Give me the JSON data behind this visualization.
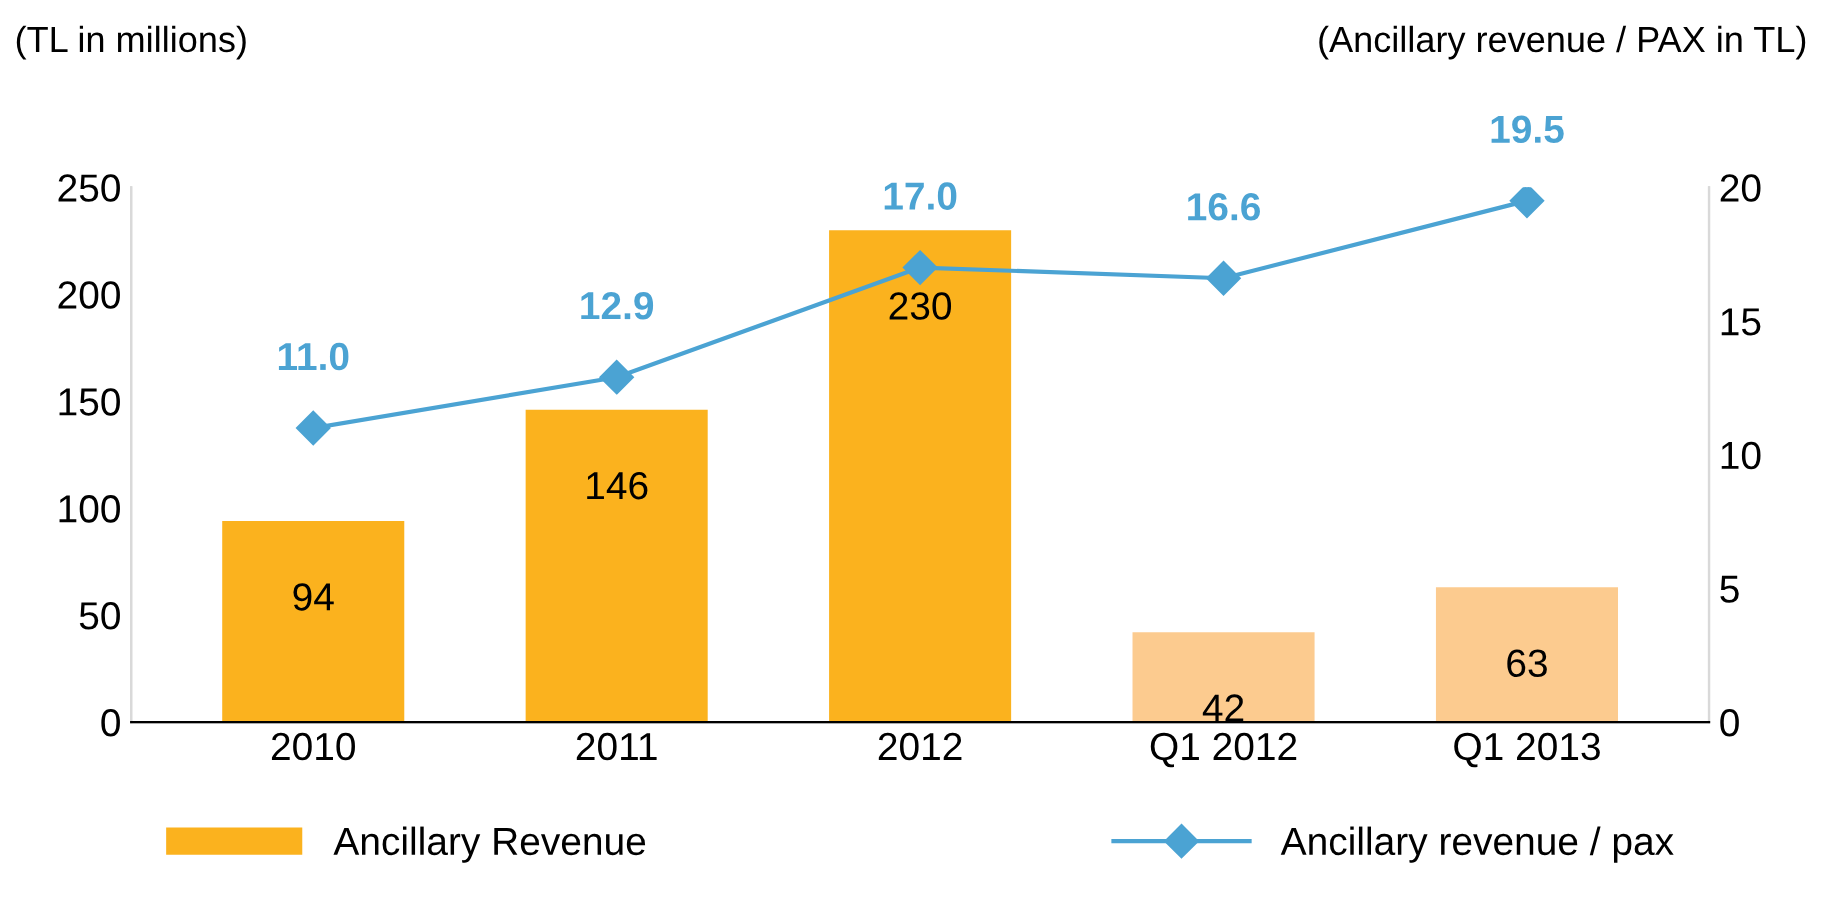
{
  "chart_data": {
    "type": "bar",
    "ylabel": "(TL in millions)",
    "y2label": "(Ancillary revenue / PAX in TL)",
    "categories": [
      "2010",
      "2011",
      "2012",
      "Q1 2012",
      "Q1 2013"
    ],
    "series": [
      {
        "name": "Ancillary Revenue",
        "colors": [
          "#fbb21e",
          "#fbb21e",
          "#fbb21e",
          "#fccb8f",
          "#fccb8f"
        ],
        "values": [
          94,
          146,
          230,
          42,
          63
        ],
        "value_labels": [
          "94",
          "146",
          "230",
          "42",
          "63"
        ]
      },
      {
        "name": "Ancillary revenue / pax",
        "type": "line",
        "axis": "y2",
        "color": "#4ba3d3",
        "marker": "diamond",
        "values": [
          11.0,
          12.9,
          17.0,
          16.6,
          19.5
        ],
        "value_labels": [
          "11.0",
          "12.9",
          "17.0",
          "16.6",
          "19.5"
        ]
      }
    ],
    "ylim": [
      0,
      250
    ],
    "yticks": [
      0,
      50,
      100,
      150,
      200,
      250
    ],
    "y2lim": [
      0,
      20
    ],
    "y2ticks": [
      0,
      5,
      10,
      15,
      20
    ],
    "grid": false,
    "legend": "bottom"
  }
}
